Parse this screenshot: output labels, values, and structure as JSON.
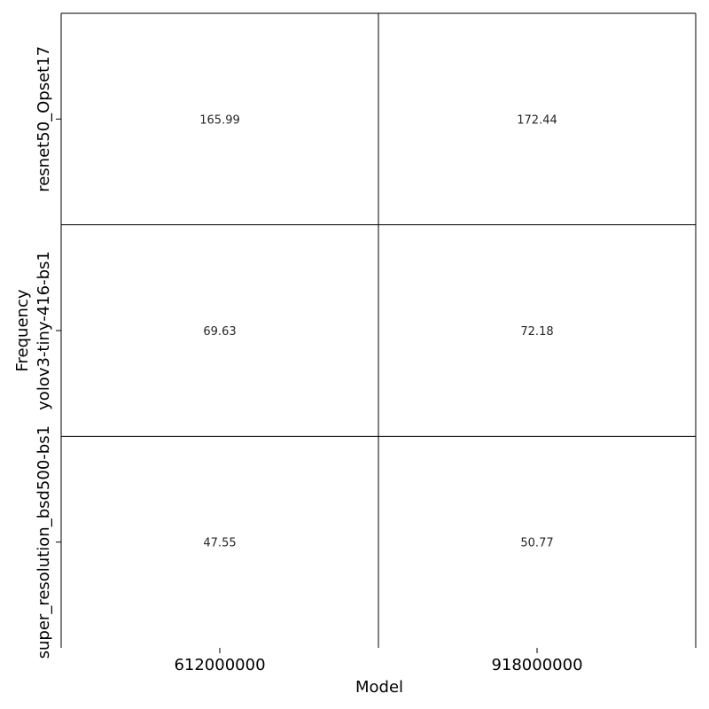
{
  "chart_data": {
    "type": "heatmap",
    "title": "",
    "xlabel": "Model",
    "ylabel": "Frequency",
    "x_categories": [
      "612000000",
      "918000000"
    ],
    "y_categories": [
      "resnet50_Opset17",
      "yolov3-tiny-416-bs1",
      "super_resolution_bsd500-bs1"
    ],
    "values": [
      [
        165.99,
        172.44
      ],
      [
        69.63,
        72.18
      ],
      [
        47.55,
        50.77
      ]
    ],
    "cell_labels": [
      [
        "165.99",
        "172.44"
      ],
      [
        "69.63",
        "72.18"
      ],
      [
        "47.55",
        "50.77"
      ]
    ],
    "grid": true,
    "colorbar": false,
    "colors": {
      "cell_fill": "#ffffff",
      "grid_line": "#000000",
      "text": "#262626"
    }
  }
}
